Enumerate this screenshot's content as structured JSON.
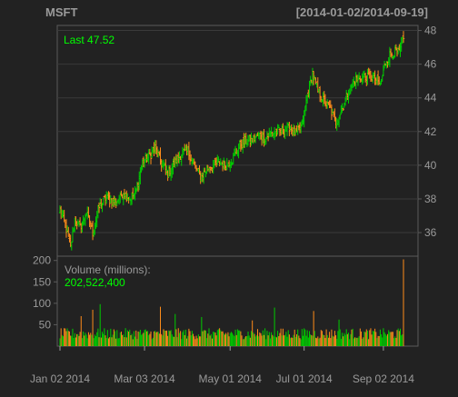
{
  "chart_data": {
    "type": "candlestick",
    "symbol": "MSFT",
    "date_range": "[2014-01-02/2014-09-19]",
    "colors": {
      "up": "#00cc00",
      "down": "#ff8c1a",
      "background": "#222222",
      "frame": "#5a5a5a",
      "grid": "#3a3a3a",
      "label": "#9a9a9a",
      "highlight": "#00ff00"
    },
    "price_panel": {
      "annotation_label": "Last",
      "last_value": "47.52",
      "ylim": [
        34.6,
        48.3
      ],
      "y_ticks": [
        36,
        38,
        40,
        42,
        44,
        46,
        48
      ],
      "anchors": [
        [
          0,
          37.3
        ],
        [
          5,
          36.5
        ],
        [
          10,
          35.1
        ],
        [
          14,
          36.8
        ],
        [
          19,
          36.3
        ],
        [
          25,
          37.2
        ],
        [
          31,
          36.0
        ],
        [
          37,
          37.5
        ],
        [
          44,
          38.1
        ],
        [
          50,
          37.8
        ],
        [
          55,
          38.0
        ],
        [
          60,
          38.4
        ],
        [
          66,
          38.0
        ],
        [
          72,
          38.4
        ],
        [
          78,
          40.2
        ],
        [
          84,
          40.5
        ],
        [
          90,
          41.0
        ],
        [
          96,
          40.1
        ],
        [
          102,
          39.5
        ],
        [
          108,
          40.1
        ],
        [
          115,
          40.7
        ],
        [
          121,
          40.8
        ],
        [
          127,
          40.0
        ],
        [
          133,
          39.3
        ],
        [
          139,
          39.8
        ],
        [
          145,
          40.0
        ],
        [
          151,
          40.2
        ],
        [
          157,
          40.0
        ],
        [
          163,
          40.3
        ],
        [
          170,
          41.2
        ],
        [
          176,
          41.4
        ],
        [
          182,
          41.5
        ],
        [
          188,
          41.8
        ],
        [
          194,
          41.6
        ],
        [
          200,
          41.9
        ],
        [
          205,
          42.0
        ],
        [
          211,
          42.0
        ],
        [
          217,
          42.3
        ],
        [
          223,
          41.8
        ],
        [
          229,
          42.4
        ],
        [
          235,
          44.5
        ],
        [
          239,
          45.4
        ],
        [
          244,
          44.4
        ],
        [
          250,
          43.8
        ],
        [
          256,
          43.3
        ],
        [
          261,
          42.5
        ],
        [
          267,
          43.4
        ],
        [
          273,
          44.4
        ],
        [
          279,
          45.0
        ],
        [
          285,
          45.2
        ],
        [
          291,
          45.3
        ],
        [
          297,
          45.2
        ],
        [
          303,
          44.8
        ],
        [
          309,
          46.3
        ],
        [
          315,
          46.7
        ],
        [
          321,
          46.7
        ],
        [
          325,
          47.5
        ]
      ]
    },
    "volume_panel": {
      "label": "Volume (millions):",
      "last_value": "202,522,400",
      "ylim": [
        0,
        210
      ],
      "y_ticks": [
        50,
        100,
        150,
        200
      ],
      "spikes": [
        [
          20,
          70
        ],
        [
          31,
          85
        ],
        [
          38,
          98
        ],
        [
          95,
          92
        ],
        [
          109,
          75
        ],
        [
          134,
          68
        ],
        [
          182,
          60
        ],
        [
          203,
          90
        ],
        [
          240,
          82
        ],
        [
          264,
          62
        ],
        [
          325,
          202.5
        ]
      ]
    },
    "x_axis": {
      "tick_labels": [
        "Jan 02 2014",
        "Mar 03 2014",
        "May 01 2014",
        "Jul 01 2014",
        "Sep 02 2014"
      ],
      "tick_bar_index": [
        0,
        80,
        161,
        231,
        306
      ],
      "n_bars": 326
    }
  }
}
